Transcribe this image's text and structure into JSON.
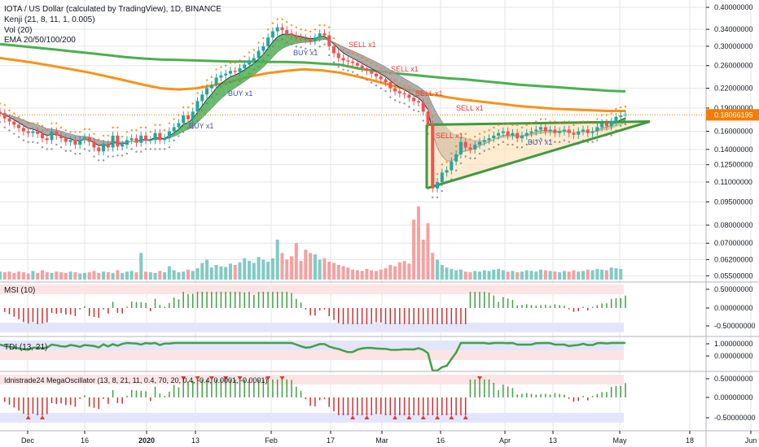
{
  "colors": {
    "up": "#26a69a",
    "down": "#ef5350",
    "vol_up": "#80cbc4",
    "vol_down": "#f4a1a1",
    "ema20": "#131722",
    "ema50": "#8d8d8d",
    "ema100": "#f7931a",
    "ema200": "#4caf50",
    "ribbon_bull": "#4caf50",
    "ribbon_bear": "#9e9e9e",
    "tri": "#3e9a3e",
    "tri_fill": "#ffe0b2",
    "price_label": "#f57c00",
    "buy": "#3f51b5",
    "sell": "#e53935",
    "grid": "#e6e6e6",
    "axis": "#131722",
    "band_red": "#fde4e4",
    "band_blue": "#e3e6fb"
  },
  "legend": {
    "title": "IOTA / US Dollar (calculated by TradingView), 1D, BINANCE",
    "kenji": "Kenji (21, 8, 11, 1, 0.005)",
    "vol": "Vol (20)",
    "ema": "EMA 20/50/100/200"
  },
  "panes": {
    "msi": "MSI (10)",
    "tdi": "TDI (13, 21)",
    "mega": "Idnistrade24 MegaOscillator (13, 8, 21, 11, 0.4, 70, 20, 0.4, -0.4, 0.0001, -0.0001)"
  },
  "signals": {
    "buy": "BUY x1",
    "sell": "SELL x1"
  },
  "chart_data": {
    "type": "candlestick",
    "symbol": "IOTA / US Dollar",
    "interval": "1D",
    "exchange": "BINANCE",
    "log_scale": true,
    "ylim": [
      0.0548,
      0.4
    ],
    "price_ticks": [
      "0.40000000",
      "0.34000000",
      "0.30000000",
      "0.26000000",
      "0.22000000",
      "0.19000000",
      "0.16000000",
      "0.14000000",
      "0.12500000",
      "0.11000000",
      "0.09500000",
      "0.08000000",
      "0.07000000",
      "0.06200000",
      "0.05500000"
    ],
    "last_price": "0.18066195",
    "x_ticks": [
      "Dec",
      "16",
      "2020",
      "13",
      "Feb",
      "17",
      "Mar",
      "16",
      "Apr",
      "13",
      "May",
      "18",
      "Jun"
    ],
    "price_series": [
      0.183,
      0.176,
      0.172,
      0.168,
      0.164,
      0.16,
      0.158,
      0.16,
      0.157,
      0.152,
      0.15,
      0.16,
      0.155,
      0.152,
      0.148,
      0.15,
      0.145,
      0.15,
      0.153,
      0.148,
      0.142,
      0.138,
      0.146,
      0.142,
      0.155,
      0.143,
      0.145,
      0.15,
      0.152,
      0.147,
      0.155,
      0.15,
      0.15,
      0.158,
      0.15,
      0.152,
      0.16,
      0.165,
      0.17,
      0.18,
      0.175,
      0.185,
      0.2,
      0.21,
      0.22,
      0.225,
      0.238,
      0.242,
      0.245,
      0.25,
      0.248,
      0.255,
      0.262,
      0.27,
      0.275,
      0.29,
      0.3,
      0.32,
      0.335,
      0.345,
      0.338,
      0.33,
      0.325,
      0.32,
      0.318,
      0.315,
      0.312,
      0.32,
      0.33,
      0.325,
      0.3,
      0.285,
      0.275,
      0.27,
      0.268,
      0.265,
      0.26,
      0.255,
      0.25,
      0.245,
      0.24,
      0.235,
      0.23,
      0.22,
      0.215,
      0.212,
      0.21,
      0.205,
      0.2,
      0.198,
      0.185,
      0.168,
      0.105,
      0.11,
      0.118,
      0.12,
      0.128,
      0.135,
      0.148,
      0.142,
      0.14,
      0.145,
      0.148,
      0.15,
      0.152,
      0.155,
      0.158,
      0.16,
      0.155,
      0.158,
      0.152,
      0.155,
      0.158,
      0.16,
      0.162,
      0.165,
      0.16,
      0.162,
      0.158,
      0.16,
      0.162,
      0.158,
      0.156,
      0.16,
      0.162,
      0.158,
      0.16,
      0.165,
      0.17,
      0.166,
      0.172,
      0.178,
      0.18,
      0.181
    ],
    "ema200_series": [
      0.305,
      0.301,
      0.297,
      0.293,
      0.289,
      0.285,
      0.281,
      0.277,
      0.274,
      0.272,
      0.271,
      0.27,
      0.269,
      0.268,
      0.268,
      0.267,
      0.267,
      0.266,
      0.264,
      0.262,
      0.255,
      0.25,
      0.246,
      0.243,
      0.24,
      0.237,
      0.235,
      0.232,
      0.229,
      0.226,
      0.224,
      0.222,
      0.22,
      0.218,
      0.216,
      0.215
    ],
    "ema100_series": [
      0.275,
      0.27,
      0.265,
      0.259,
      0.253,
      0.247,
      0.24,
      0.233,
      0.226,
      0.22,
      0.218,
      0.22,
      0.225,
      0.232,
      0.24,
      0.246,
      0.25,
      0.253,
      0.251,
      0.247,
      0.24,
      0.232,
      0.224,
      0.217,
      0.211,
      0.206,
      0.202,
      0.199,
      0.196,
      0.193,
      0.191,
      0.189,
      0.188,
      0.187,
      0.186,
      0.186
    ],
    "volume_series": [
      12,
      11,
      12,
      10,
      12,
      11,
      9,
      13,
      10,
      14,
      11,
      10,
      12,
      11,
      10,
      12,
      11,
      9,
      10,
      11,
      13,
      10,
      12,
      11,
      10,
      14,
      10,
      12,
      13,
      11,
      40,
      12,
      11,
      10,
      13,
      11,
      20,
      14,
      11,
      12,
      15,
      13,
      17,
      25,
      30,
      18,
      22,
      20,
      19,
      24,
      22,
      26,
      32,
      28,
      25,
      34,
      30,
      27,
      32,
      60,
      40,
      30,
      35,
      55,
      28,
      45,
      40,
      38,
      30,
      32,
      27,
      25,
      22,
      20,
      18,
      15,
      14,
      13,
      16,
      14,
      13,
      15,
      17,
      22,
      20,
      26,
      28,
      24,
      90,
      110,
      60,
      85,
      40,
      30,
      22,
      18,
      16,
      14,
      15,
      12,
      11,
      13,
      12,
      14,
      13,
      15,
      16,
      14,
      12,
      13,
      11,
      12,
      14,
      13,
      12,
      15,
      14,
      13,
      12,
      11,
      13,
      12,
      14,
      12,
      13,
      15,
      14,
      16,
      15,
      14,
      18,
      17,
      16
    ],
    "msi_range": [
      -0.5,
      0.5
    ],
    "msi_ticks": [
      "0.50000000",
      "0.00000000",
      "-0.50000000"
    ],
    "tdi_ticks": [
      "1.00000000",
      "0.00000000"
    ],
    "mega_ticks": [
      "0.50000000",
      "0.00000000",
      "-0.50000000"
    ]
  }
}
